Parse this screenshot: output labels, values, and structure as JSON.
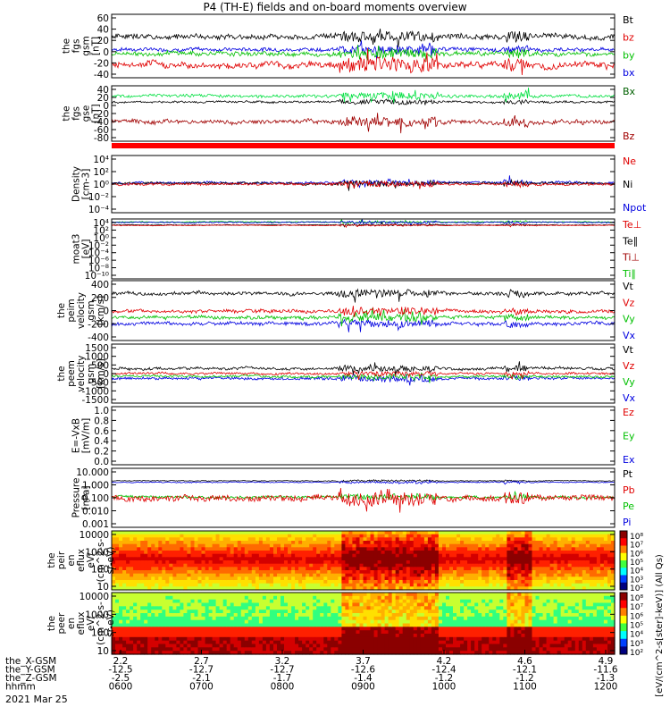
{
  "title": "P4 (TH-E) fields and on-board moments overview",
  "date_label": "2021 Mar 25",
  "chart_data": [
    {
      "type": "line",
      "ylabel": [
        "the",
        "fgs",
        "gsm",
        "[nT]"
      ],
      "yticks": [
        "60",
        "40",
        "20",
        "0",
        "-20",
        "-40"
      ],
      "ylim": [
        -40,
        60
      ],
      "legend": [
        {
          "text": "Bt",
          "color": "#000000"
        },
        {
          "text": "bz",
          "color": "#e00000"
        },
        {
          "text": "by",
          "color": "#00c000"
        },
        {
          "text": "bx",
          "color": "#0000e0"
        }
      ],
      "series": [
        {
          "color": "#0000e0",
          "base": 5,
          "amp": 5
        },
        {
          "color": "#00c000",
          "base": -2,
          "amp": 6
        },
        {
          "color": "#e00000",
          "base": -20,
          "amp": 9
        },
        {
          "color": "#000000",
          "base": 25,
          "amp": 7
        }
      ]
    },
    {
      "type": "line",
      "ylabel": [
        "the",
        "fgs",
        "gse",
        "[nT]"
      ],
      "yticks": [
        "40",
        "20",
        "0",
        "-20",
        "-40",
        "-60",
        "-80"
      ],
      "ylim": [
        -80,
        40
      ],
      "legend": [
        {
          "text": "Bx",
          "color": "#006000"
        },
        {
          "text": "Bz",
          "color": "#a00000"
        }
      ],
      "series": [
        {
          "color": "#000000",
          "base": 5,
          "amp": 4
        },
        {
          "color": "#00e040",
          "base": 18,
          "amp": 6
        },
        {
          "color": "#a00000",
          "base": -38,
          "amp": 8
        }
      ]
    },
    {
      "type": "flag",
      "ylabel": [],
      "yticks": [],
      "legend": [],
      "series": [
        {
          "color": "#ff0000"
        }
      ]
    },
    {
      "type": "line",
      "log": true,
      "ylabel": [
        "Density",
        "[cm-3]"
      ],
      "yticks": [
        "10⁴",
        "10²",
        "10⁰",
        "10⁻²",
        "10⁻⁴"
      ],
      "ylim": [
        -4,
        4
      ],
      "legend": [
        {
          "text": "Ne",
          "color": "#e00000"
        },
        {
          "text": "Ni",
          "color": "#000000"
        },
        {
          "text": "Npot",
          "color": "#0000e0"
        }
      ],
      "series": [
        {
          "color": "#0000e0",
          "base": 0.2,
          "amp": 0.3
        },
        {
          "color": "#000000",
          "base": 0.1,
          "amp": 0.3
        },
        {
          "color": "#e00000",
          "base": 0.0,
          "amp": 0.3
        }
      ]
    },
    {
      "type": "line",
      "log": true,
      "ylabel": [
        "moat3",
        "[eV]"
      ],
      "yticks": [
        "10⁴",
        "10²",
        "10⁰",
        "10⁻²",
        "10⁻⁴",
        "10⁻⁶",
        "10⁻⁸",
        "10⁻¹⁰"
      ],
      "ylim": [
        -10,
        4
      ],
      "legend": [
        {
          "text": "Te⊥",
          "color": "#e00000"
        },
        {
          "text": "Te∥",
          "color": "#000000"
        },
        {
          "text": "Ti⊥",
          "color": "#a00000"
        },
        {
          "text": "Ti∥",
          "color": "#00c000"
        }
      ],
      "series": [
        {
          "color": "#00c000",
          "base": 3.3,
          "amp": 0.2
        },
        {
          "color": "#0000e0",
          "base": 3.2,
          "amp": 0.25
        },
        {
          "color": "#000000",
          "base": 2.6,
          "amp": 0.15
        },
        {
          "color": "#e00000",
          "base": 2.5,
          "amp": 0.15
        }
      ]
    },
    {
      "type": "line",
      "ylabel": [
        "the",
        "peim",
        "velocity",
        "gsm",
        "[km/s]"
      ],
      "yticks": [
        "400",
        "200",
        "0",
        "-200",
        "-400"
      ],
      "ylim": [
        -400,
        400
      ],
      "legend": [
        {
          "text": "Vt",
          "color": "#000000"
        },
        {
          "text": "Vz",
          "color": "#e00000"
        },
        {
          "text": "Vy",
          "color": "#00c000"
        },
        {
          "text": "Vx",
          "color": "#0000e0"
        }
      ],
      "series": [
        {
          "color": "#0000e0",
          "base": -170,
          "amp": 40
        },
        {
          "color": "#00c000",
          "base": -90,
          "amp": 40
        },
        {
          "color": "#e00000",
          "base": -10,
          "amp": 40
        },
        {
          "color": "#000000",
          "base": 230,
          "amp": 40
        }
      ]
    },
    {
      "type": "line",
      "ylabel": [
        "the",
        "peem",
        "velocity",
        "gsm",
        "[km/s]"
      ],
      "yticks": [
        "1500",
        "1000",
        "500",
        "0",
        "-500",
        "-1000",
        "-1500"
      ],
      "ylim": [
        -1500,
        1500
      ],
      "legend": [
        {
          "text": "Vt",
          "color": "#000000"
        },
        {
          "text": "Vz",
          "color": "#e00000"
        },
        {
          "text": "Vy",
          "color": "#00c000"
        },
        {
          "text": "Vx",
          "color": "#0000e0"
        }
      ],
      "series": [
        {
          "color": "#0000e0",
          "base": -250,
          "amp": 120
        },
        {
          "color": "#00c000",
          "base": -150,
          "amp": 100
        },
        {
          "color": "#e00000",
          "base": 0,
          "amp": 100
        },
        {
          "color": "#000000",
          "base": 250,
          "amp": 120
        }
      ]
    },
    {
      "type": "empty",
      "ylabel": [
        "E=-VxB",
        "[mV/m]"
      ],
      "yticks": [
        "1.0",
        "0.8",
        "0.6",
        "0.4",
        "0.2",
        "0.0"
      ],
      "ylim": [
        0,
        1
      ],
      "legend": [
        {
          "text": "Ez",
          "color": "#e00000"
        },
        {
          "text": "Ey",
          "color": "#00c000"
        },
        {
          "text": "Ex",
          "color": "#0000e0"
        }
      ],
      "series": []
    },
    {
      "type": "line",
      "log": true,
      "ylabel": [
        "Pressure",
        "[nPa]"
      ],
      "yticks": [
        "10.000",
        "1.000",
        "0.100",
        "0.010",
        "0.001"
      ],
      "ylim": [
        -3,
        1
      ],
      "legend": [
        {
          "text": "Pt",
          "color": "#000000"
        },
        {
          "text": "Pb",
          "color": "#e00000"
        },
        {
          "text": "Pe",
          "color": "#00c000"
        },
        {
          "text": "Pi",
          "color": "#0000e0"
        }
      ],
      "series": [
        {
          "color": "#000000",
          "base": 0.15,
          "amp": 0.05
        },
        {
          "color": "#0000e0",
          "base": 0.05,
          "amp": 0.06
        },
        {
          "color": "#00c000",
          "base": -0.95,
          "amp": 0.15
        },
        {
          "color": "#e00000",
          "base": -1.05,
          "amp": 0.35
        }
      ]
    },
    {
      "type": "heatmap",
      "ylabel": [
        "the",
        "peir",
        "en",
        "eflux",
        "eV/",
        "(cm^2-s-",
        "sr-eV)"
      ],
      "yticks": [
        "10000",
        "1000",
        "100",
        "10"
      ],
      "ylim": [
        1,
        4.3
      ],
      "legend": [],
      "colorbar": [
        "10⁸",
        "10⁷",
        "10⁶",
        "10⁵",
        "10⁴",
        "10³",
        "10²"
      ],
      "series": []
    },
    {
      "type": "heatmap",
      "ylabel": [
        "the",
        "peer",
        "en",
        "eflux",
        "eV/",
        "(cm^2-s-",
        "sr-eV)"
      ],
      "yticks": [
        "10000",
        "1000",
        "100",
        "10"
      ],
      "ylim": [
        1,
        4.3
      ],
      "legend": [],
      "colorbar": [
        "10⁸",
        "10⁷",
        "10⁶",
        "10⁵",
        "10⁴",
        "10³",
        "10²"
      ],
      "series": []
    }
  ],
  "colorbar_label": "[eV/(cm^2-s[ster]-keV)] (All Qs)",
  "time_axis": {
    "row_labels": [
      "the_X-GSM",
      "the_Y-GSM",
      "the_Z-GSM",
      "hhmm"
    ],
    "columns": [
      [
        "2.2",
        "-12.5",
        "-2.5",
        "0600"
      ],
      [
        "2.7",
        "-12.7",
        "-2.1",
        "0700"
      ],
      [
        "3.2",
        "-12.7",
        "-1.7",
        "0800"
      ],
      [
        "3.7",
        "-12.6",
        "-1.4",
        "0900"
      ],
      [
        "4.2",
        "-12.4",
        "-1.2",
        "1000"
      ],
      [
        "4.6",
        "-12.1",
        "-1.2",
        "1100"
      ],
      [
        "4.9",
        "-11.6",
        "-1.3",
        "1200"
      ]
    ]
  },
  "colors": {
    "axis": "#000000",
    "flag": "#ff0000"
  }
}
